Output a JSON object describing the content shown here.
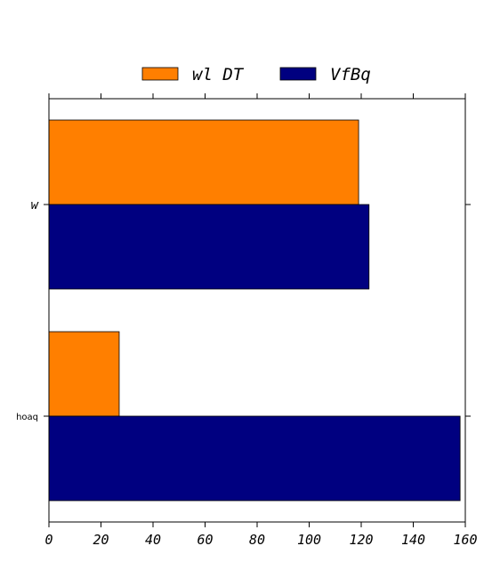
{
  "chart_data": {
    "type": "bar",
    "orientation": "horizontal",
    "categories": [
      "w",
      "hoaq"
    ],
    "series": [
      {
        "name": "wl DT",
        "color": "#ff7f00",
        "values": [
          119,
          27
        ]
      },
      {
        "name": "VfBq",
        "color": "#000080",
        "values": [
          123,
          158
        ]
      }
    ],
    "xlim": [
      0,
      160
    ],
    "xticks": [
      "0",
      "20",
      "40",
      "60",
      "80",
      "100",
      "120",
      "140",
      "160"
    ],
    "legend_position": "top-center",
    "grid": false
  }
}
